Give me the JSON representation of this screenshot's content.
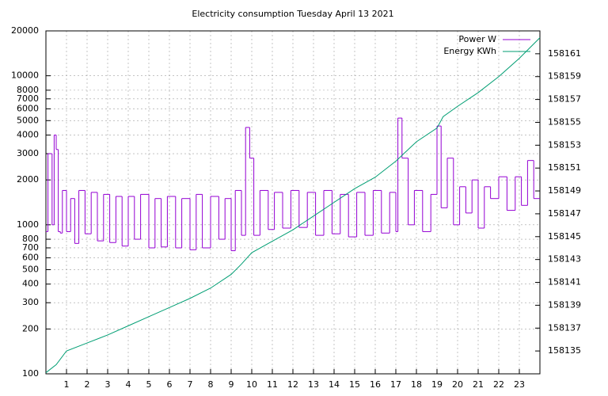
{
  "chart_data": {
    "type": "line",
    "title": "Electricity consumption Tuesday April 13 2021",
    "xlim": [
      0,
      24
    ],
    "xticks": [
      1,
      2,
      3,
      4,
      5,
      6,
      7,
      8,
      9,
      10,
      11,
      12,
      13,
      14,
      15,
      16,
      17,
      18,
      19,
      20,
      21,
      22,
      23
    ],
    "ylim": [
      100,
      20000
    ],
    "yticks": [
      100,
      200,
      300,
      400,
      500,
      600,
      700,
      800,
      1000,
      2000,
      3000,
      4000,
      5000,
      6000,
      7000,
      8000,
      10000,
      20000
    ],
    "ylog": true,
    "y2lim": [
      158133,
      158163
    ],
    "y2ticks": [
      158135,
      158137,
      158139,
      158141,
      158143,
      158145,
      158147,
      158149,
      158151,
      158153,
      158155,
      158157,
      158159,
      158161
    ],
    "grid": true,
    "legend": "top-right",
    "series": [
      {
        "name": "Power W",
        "color": "#9400d3",
        "line": "steps",
        "x": [
          0,
          0.1,
          0.3,
          0.4,
          0.5,
          0.6,
          0.7,
          0.8,
          1.0,
          1.2,
          1.4,
          1.6,
          1.9,
          2.2,
          2.5,
          2.8,
          3.1,
          3.4,
          3.7,
          4.0,
          4.3,
          4.6,
          5.0,
          5.3,
          5.6,
          5.9,
          6.3,
          6.6,
          7.0,
          7.3,
          7.6,
          8.0,
          8.4,
          8.7,
          9.0,
          9.2,
          9.5,
          9.7,
          9.9,
          10.1,
          10.4,
          10.8,
          11.1,
          11.5,
          11.9,
          12.3,
          12.7,
          13.1,
          13.5,
          13.9,
          14.3,
          14.7,
          15.1,
          15.5,
          15.9,
          16.3,
          16.7,
          17.0,
          17.1,
          17.3,
          17.6,
          17.9,
          18.3,
          18.7,
          19.0,
          19.2,
          19.5,
          19.8,
          20.1,
          20.4,
          20.7,
          21.0,
          21.3,
          21.6,
          22.0,
          22.4,
          22.8,
          23.1,
          23.4,
          23.7
        ],
        "values": [
          900,
          3000,
          1000,
          4000,
          3200,
          900,
          880,
          1700,
          900,
          1500,
          750,
          1700,
          870,
          1650,
          780,
          1600,
          760,
          1550,
          720,
          1550,
          800,
          1600,
          700,
          1500,
          710,
          1550,
          700,
          1500,
          680,
          1600,
          700,
          1550,
          800,
          1500,
          670,
          1700,
          850,
          4500,
          2800,
          850,
          1700,
          930,
          1650,
          950,
          1700,
          960,
          1650,
          850,
          1700,
          870,
          1600,
          830,
          1650,
          850,
          1700,
          880,
          1650,
          900,
          5200,
          2800,
          1000,
          1700,
          900,
          1600,
          4600,
          1300,
          2800,
          1000,
          1800,
          1200,
          2000,
          950,
          1800,
          1500,
          2100,
          1250,
          2100,
          1350,
          2700,
          1500
        ]
      },
      {
        "name": "Energy KWh",
        "color": "#009e73",
        "axis": "y2",
        "x": [
          0,
          0.5,
          1,
          2,
          3,
          4,
          5,
          6,
          7,
          8,
          9,
          9.5,
          10,
          11,
          12,
          13,
          14,
          15,
          16,
          17,
          18,
          19,
          19.3,
          20,
          21,
          22,
          23,
          23.5,
          24
        ],
        "values": [
          158133.1,
          158133.8,
          158135.0,
          158135.7,
          158136.4,
          158137.2,
          158138.0,
          158138.8,
          158139.6,
          158140.5,
          158141.7,
          158142.6,
          158143.6,
          158144.6,
          158145.6,
          158146.8,
          158148.0,
          158149.2,
          158150.2,
          158151.6,
          158153.3,
          158154.5,
          158155.5,
          158156.4,
          158157.6,
          158159.0,
          158160.6,
          158161.5,
          158162.4
        ]
      }
    ]
  }
}
